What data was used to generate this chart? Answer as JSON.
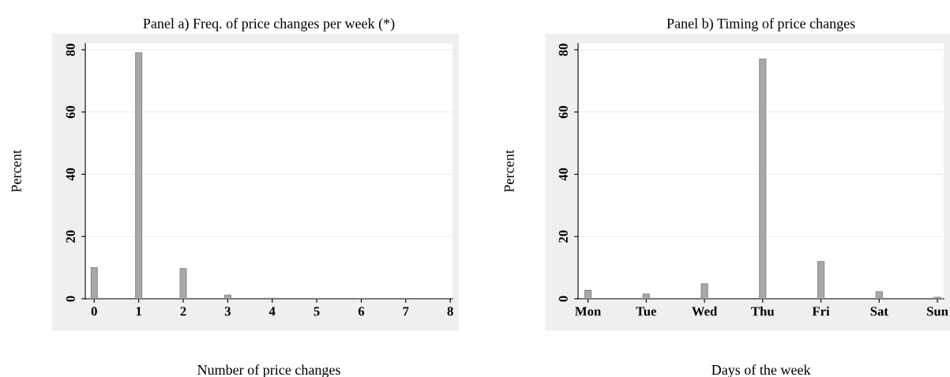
{
  "chart_data": [
    {
      "type": "bar",
      "title": "Panel a) Freq. of price changes per week (*)",
      "xlabel": "Number of price changes",
      "ylabel": "Percent",
      "x": [
        0,
        1,
        2,
        3,
        4,
        5,
        6,
        7
      ],
      "values": [
        10,
        79,
        9.7,
        1.2,
        0.2,
        0.1,
        0.1,
        0.1
      ],
      "color": "#a8a8a8",
      "xlim": [
        -0.2,
        8.05
      ],
      "xticks": [
        0,
        1,
        2,
        3,
        4,
        5,
        6,
        7,
        8
      ],
      "ylim": [
        0,
        82
      ],
      "yticks": [
        0,
        20,
        40,
        60,
        80
      ],
      "grid": "y"
    },
    {
      "type": "bar",
      "title": "Panel b) Timing of price changes",
      "xlabel": "Days of the week",
      "ylabel": "Percent",
      "categories": [
        "Mon",
        "Tue",
        "Wed",
        "Thu",
        "Fri",
        "Sat",
        "Sun"
      ],
      "values": [
        2.7,
        1.5,
        4.8,
        77,
        12,
        2.3,
        0.5
      ],
      "color": "#a8a8a8",
      "ylim": [
        0,
        82
      ],
      "yticks": [
        0,
        20,
        40,
        60,
        80
      ],
      "grid": "y"
    }
  ]
}
